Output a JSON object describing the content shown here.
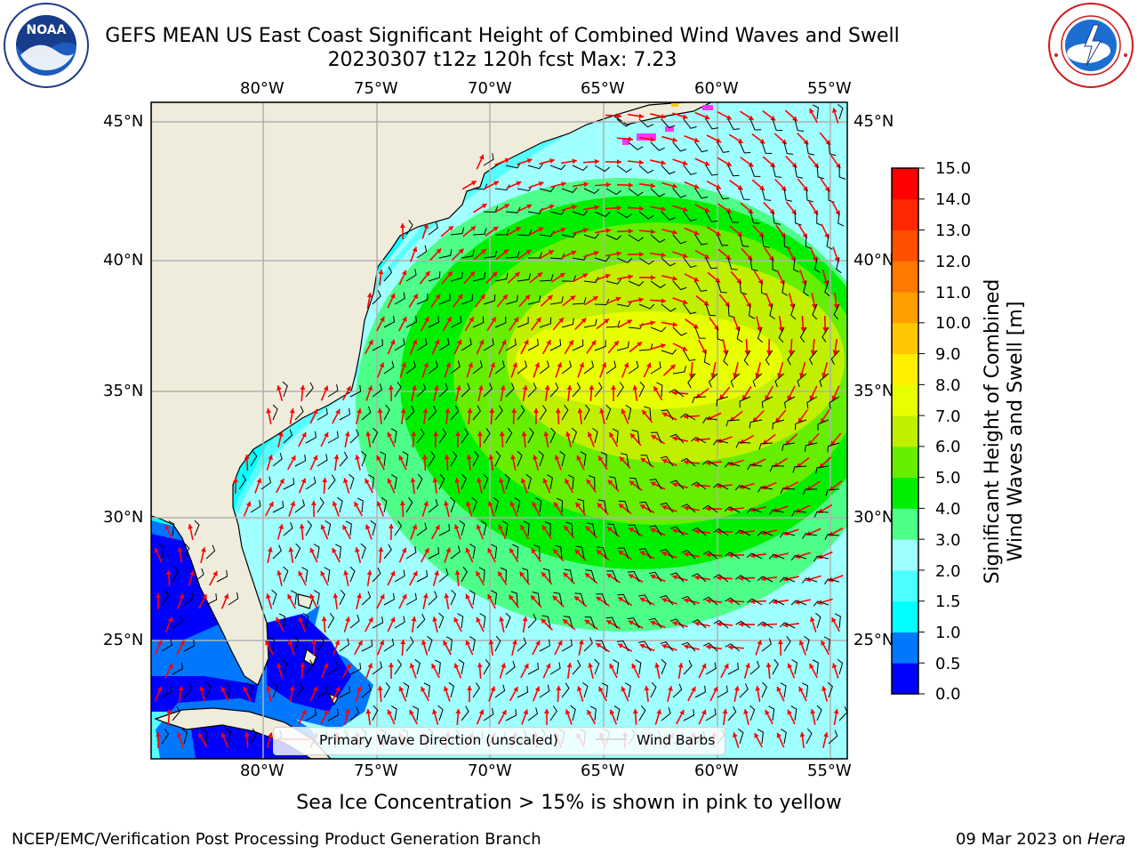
{
  "title": {
    "line1": "GEFS MEAN US East Coast Significant Height of Combined Wind Waves and Swell",
    "line2": "20230307 t12z 120h fcst   Max: 7.23"
  },
  "logos": {
    "left": {
      "text": "NOAA",
      "icon": "noaa-logo",
      "ring_text": "NATIONAL OCEANIC AND ATMOSPHERIC ADMINISTRATION · U.S. DEPARTMENT OF COMMERCE"
    },
    "right": {
      "icon": "nws-logo",
      "ring_text": "NATIONAL WEATHER SERVICE"
    }
  },
  "map": {
    "lon_labels": [
      "80°W",
      "75°W",
      "70°W",
      "65°W",
      "60°W",
      "55°W"
    ],
    "lat_labels": [
      "45°N",
      "40°N",
      "35°N",
      "30°N",
      "25°N"
    ],
    "land_color": "#efecdc",
    "grid_color": "#b0b0b0"
  },
  "colorbar": {
    "label_line1": "Significant Height of Combined",
    "label_line2": "Wind Waves and Swell [m]",
    "ticks": [
      "15.0",
      "14.0",
      "13.0",
      "12.0",
      "11.0",
      "10.0",
      "9.0",
      "8.0",
      "7.0",
      "6.0",
      "5.0",
      "4.0",
      "3.0",
      "2.0",
      "1.5",
      "1.0",
      "0.5",
      "0.0"
    ],
    "colors": [
      "#0000ff",
      "#0077ff",
      "#00ffff",
      "#4dffff",
      "#a0ffff",
      "#4dff88",
      "#00ef00",
      "#66ee00",
      "#c0f000",
      "#e8ff00",
      "#fff000",
      "#ffc800",
      "#ffa000",
      "#ff7800",
      "#ff5000",
      "#ff2800",
      "#ff0000"
    ]
  },
  "legend": {
    "wave": "Primary Wave Direction (unscaled)",
    "wind": "Wind Barbs",
    "wave_color": "#ff0000",
    "wind_color": "#000000"
  },
  "note": "Sea Ice Concentration > 15% is shown in pink to yellow",
  "footer": {
    "left": "NCEP/EMC/Verification Post Processing Product Generation Branch",
    "date": "09 Mar 2023 on ",
    "host": "Hera"
  }
}
